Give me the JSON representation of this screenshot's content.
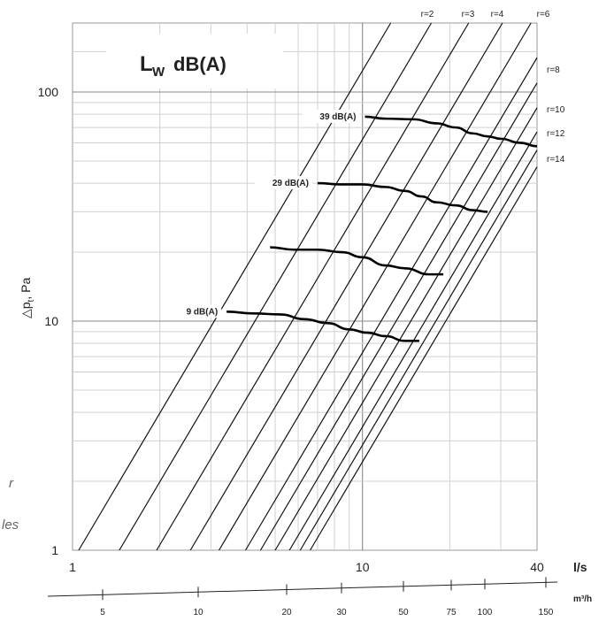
{
  "chart_data": {
    "type": "line",
    "title": "",
    "title_box": {
      "main": "L",
      "sub": "W",
      "unit": "dB(A)"
    },
    "xlabel": "l/s",
    "ylabel": "△p",
    "ylabel_sub": "t",
    "ylabel_unit": ", Pa",
    "xscale": "log",
    "yscale": "log",
    "xlim": [
      1,
      40
    ],
    "ylim": [
      1,
      200
    ],
    "grid": true,
    "x_ticks": [
      "1",
      "10",
      "40"
    ],
    "y_ticks": [
      "1",
      "10",
      "100"
    ],
    "secondary_axis": {
      "unit": "m³/h",
      "ticks": [
        "5",
        "10",
        "20",
        "30",
        "50",
        "75",
        "100",
        "150"
      ]
    },
    "ratio_lines": {
      "labels": [
        "r=2",
        "r=3",
        "r=4",
        "r=6",
        "r=8",
        "r=10",
        "r=12",
        "r=14"
      ],
      "top_labels": [
        "r=2",
        "r=3",
        "r=4",
        "r=6"
      ],
      "right_labels": [
        "r=8",
        "r=10",
        "r=12",
        "r=14"
      ]
    },
    "noise_curves": [
      {
        "label": "39 dB(A)",
        "points": [
          [
            10.2,
            78
          ],
          [
            12,
            76.5
          ],
          [
            15,
            76
          ],
          [
            18,
            73
          ],
          [
            21,
            70
          ],
          [
            24,
            66
          ],
          [
            27,
            64
          ],
          [
            30,
            62.5
          ],
          [
            35,
            60
          ],
          [
            40,
            58
          ]
        ]
      },
      {
        "label": "29 dB(A)",
        "points": [
          [
            7,
            40
          ],
          [
            8.5,
            39.5
          ],
          [
            10,
            39.5
          ],
          [
            12,
            38.5
          ],
          [
            14,
            37
          ],
          [
            16,
            35
          ],
          [
            18,
            33
          ],
          [
            21,
            32
          ],
          [
            24,
            30.5
          ],
          [
            27,
            30
          ]
        ]
      },
      {
        "label": "",
        "points": [
          [
            4.8,
            21
          ],
          [
            5.8,
            20.5
          ],
          [
            7,
            20.5
          ],
          [
            8.5,
            20
          ],
          [
            10,
            19
          ],
          [
            12,
            17.5
          ],
          [
            14,
            17
          ],
          [
            17,
            16
          ],
          [
            19,
            16
          ]
        ]
      },
      {
        "label": "9 dB(A)",
        "points": [
          [
            3.4,
            11
          ],
          [
            4.2,
            10.8
          ],
          [
            5.2,
            10.7
          ],
          [
            6.3,
            10.2
          ],
          [
            7.6,
            9.8
          ],
          [
            9,
            9.2
          ],
          [
            10.4,
            8.9
          ],
          [
            12,
            8.6
          ],
          [
            14,
            8.2
          ],
          [
            15.7,
            8.2
          ]
        ]
      }
    ]
  },
  "side_text": [
    "r",
    "les"
  ]
}
